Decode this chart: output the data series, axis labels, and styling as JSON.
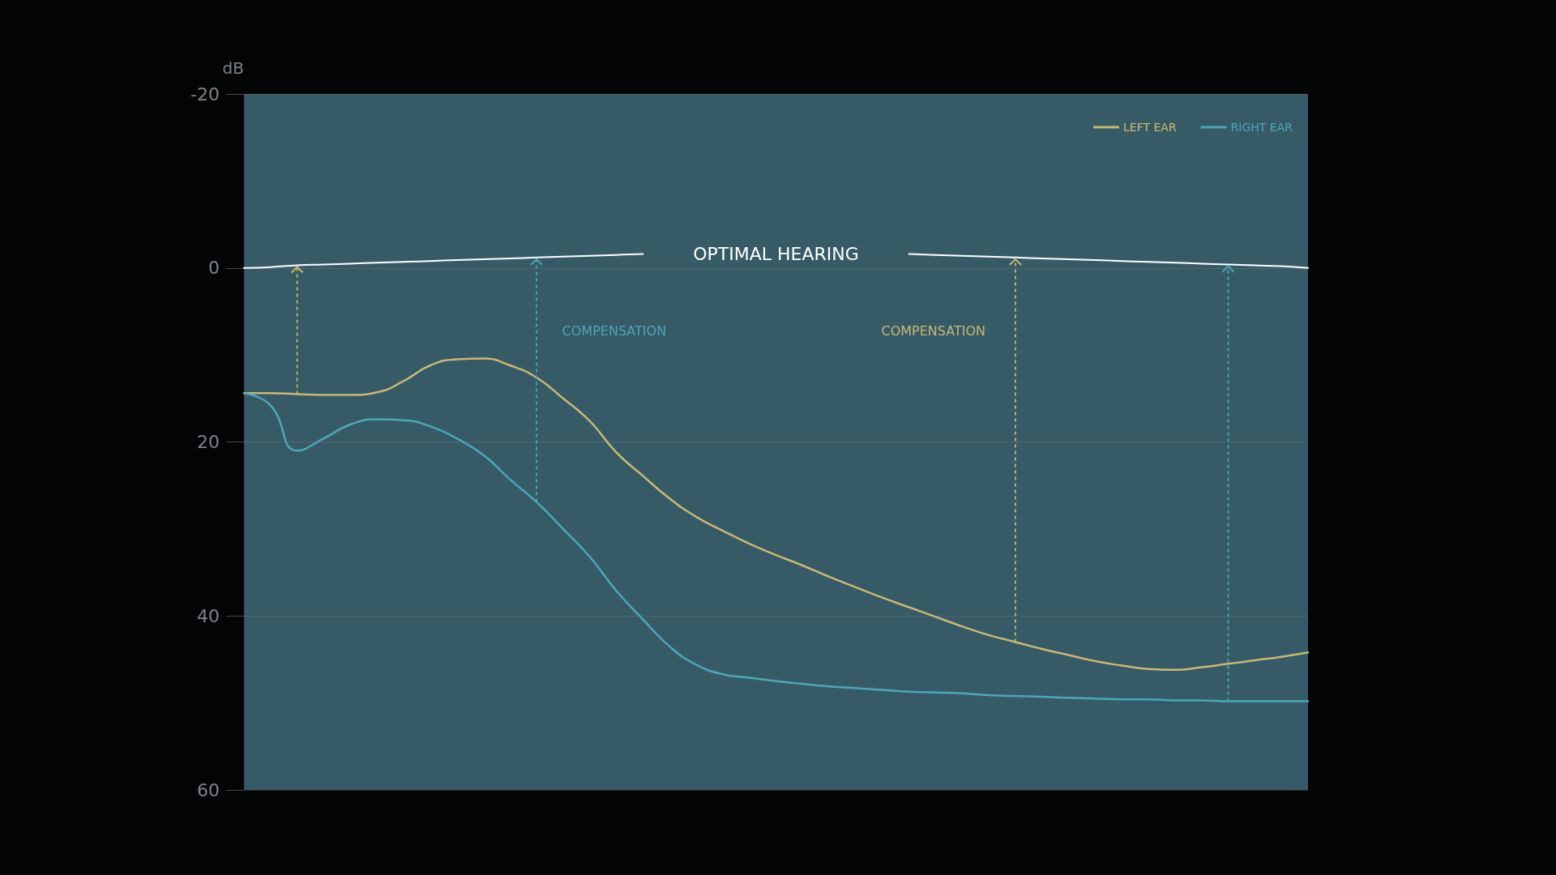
{
  "chart_data": {
    "type": "line",
    "ylabel": "dB",
    "ylim": [
      60,
      -20
    ],
    "yticks": [
      -20,
      0,
      20,
      40,
      60
    ],
    "grid": "y",
    "legend": "top right",
    "tick_labels": "y",
    "categories": [
      null,
      null,
      null,
      null,
      null,
      null,
      null,
      null,
      null,
      null,
      null,
      null,
      null,
      null,
      null,
      null,
      null,
      null,
      null,
      null,
      null,
      null,
      null,
      null,
      null,
      null,
      null,
      null,
      null,
      null,
      null,
      null,
      null,
      null,
      null,
      null,
      null,
      null,
      null,
      null,
      null
    ],
    "series": [
      {
        "name": "LEFT EAR",
        "color": "#c8b877",
        "values": [
          14.4,
          14.4,
          14.5,
          14.6,
          14.6,
          14.3,
          13.0,
          11.2,
          10.5,
          10.4,
          11.2,
          12.6,
          15.0,
          17.6,
          21.2,
          23.9,
          26.5,
          28.6,
          30.2,
          31.7,
          33.0,
          34.2,
          35.5,
          36.7,
          37.9,
          39.0,
          40.1,
          41.2,
          42.2,
          43.0,
          43.8,
          44.5,
          45.2,
          45.7,
          46.1,
          46.2,
          45.9,
          45.5,
          45.1,
          44.7,
          44.2
        ]
      },
      {
        "name": "RIGHT EAR",
        "color": "#4ea6b8",
        "values": [
          14.4,
          15.8,
          21.0,
          19.6,
          18.0,
          17.4,
          17.5,
          18.2,
          19.6,
          21.5,
          24.3,
          26.9,
          30.0,
          33.2,
          37.1,
          40.4,
          43.5,
          45.6,
          46.7,
          47.1,
          47.5,
          47.8,
          48.1,
          48.3,
          48.5,
          48.7,
          48.8,
          48.9,
          49.1,
          49.2,
          49.3,
          49.4,
          49.5,
          49.6,
          49.6,
          49.7,
          49.7,
          49.8,
          49.8,
          49.8,
          49.8
        ]
      },
      {
        "name": "OPTIMAL HEARING",
        "color": "#ffffff",
        "values": [
          0,
          -0.1,
          -0.3,
          -0.4,
          -0.5,
          -0.6,
          -0.7,
          -0.8,
          -0.9,
          -1.0,
          -1.1,
          -1.2,
          -1.3,
          -1.4,
          -1.5,
          -1.6,
          null,
          null,
          null,
          null,
          null,
          null,
          null,
          null,
          null,
          -1.6,
          -1.5,
          -1.4,
          -1.3,
          -1.2,
          -1.1,
          -1.0,
          -0.9,
          -0.8,
          -0.7,
          -0.6,
          -0.5,
          -0.4,
          -0.3,
          -0.2,
          0
        ]
      }
    ],
    "annotations": [
      "COMPENSATION",
      "COMPENSATION"
    ]
  }
}
